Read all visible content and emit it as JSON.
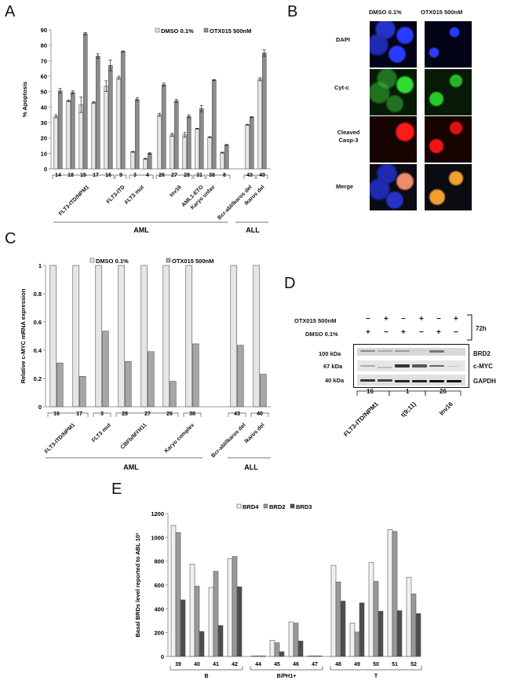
{
  "panels": {
    "A": {
      "letter": "A",
      "legend": [
        "DMSO 0.1%",
        "OTX015 500nM"
      ],
      "ylabel": "% Apoptosis",
      "yticks": [
        "0",
        "10",
        "20",
        "30",
        "40",
        "50",
        "60",
        "70",
        "80",
        "90"
      ],
      "groups_aml": "AML",
      "groups_all": "ALL"
    },
    "B": {
      "letter": "B",
      "col_headers": [
        "DMSO 0.1%",
        "OTX015 500nM"
      ],
      "row_labels": [
        "DAPI",
        "Cyt-c",
        "Cleaved Casp-3",
        "Merge"
      ]
    },
    "C": {
      "letter": "C",
      "legend": [
        "DMSO 0.1%",
        "OTX015 500nM"
      ],
      "ylabel": "Relative c-MYC mRNA expression",
      "yticks": [
        "0",
        "0.2",
        "0.4",
        "0.6",
        "0.8",
        "1"
      ],
      "groups_aml": "AML",
      "groups_all": "ALL"
    },
    "D": {
      "letter": "D",
      "row_treat_1": "OTX015 500nM",
      "row_treat_2": "DMSO 0.1%",
      "otx_signs": [
        "−",
        "+",
        "−",
        "+",
        "−",
        "+"
      ],
      "dmso_signs": [
        "+",
        "−",
        "+",
        "−",
        "+",
        "−"
      ],
      "time": "72h",
      "mw": [
        "100 kDa",
        "67 kDa",
        "40 kDa"
      ],
      "proteins": [
        "BRD2",
        "c-MYC",
        "GAPDH"
      ],
      "samples": [
        "16",
        "1",
        "26"
      ],
      "sample_labels": [
        "FLT3-ITD/NPM1",
        "t(9;11)",
        "Inv16"
      ]
    },
    "E": {
      "letter": "E",
      "legend": [
        "BRD4",
        "BRD2",
        "BRD3"
      ],
      "ylabel": "Basal BRDs level reported to ABL 10²",
      "yticks": [
        "0",
        "200",
        "400",
        "600",
        "800",
        "1000",
        "1200"
      ],
      "group_labels": [
        "B",
        "B/PH1+",
        "T"
      ]
    }
  },
  "chart_data": [
    {
      "id": "A",
      "type": "bar",
      "title": "",
      "xlabel": "",
      "ylabel": "% Apoptosis",
      "ylim": [
        0,
        90
      ],
      "legend_position": "top",
      "categories": [
        "14",
        "18",
        "15",
        "17",
        "16",
        "9",
        "3",
        "4",
        "26",
        "27",
        "28",
        "31",
        "38",
        "8",
        "43",
        "40"
      ],
      "category_groups": [
        {
          "label": "FLT3-ITD/NPM1",
          "members": [
            "14",
            "18",
            "15",
            "17",
            "16"
          ]
        },
        {
          "label": "FLT3-ITD",
          "members": [
            "9"
          ]
        },
        {
          "label": "FLT3 mut",
          "members": [
            "3",
            "4"
          ]
        },
        {
          "label": "Inv16",
          "members": [
            "26",
            "27",
            "28"
          ]
        },
        {
          "label": "AML1-ETO",
          "members": [
            "31"
          ]
        },
        {
          "label": "Karyo unfav",
          "members": [
            "38",
            "8"
          ]
        },
        {
          "label": "Bcr-abl/Ikaros del",
          "members": [
            "43"
          ]
        },
        {
          "label": "Ikaros del",
          "members": [
            "40"
          ]
        }
      ],
      "super_groups": [
        {
          "label": "AML",
          "members": [
            "14",
            "18",
            "15",
            "17",
            "16",
            "9",
            "3",
            "4",
            "26",
            "27",
            "28",
            "31",
            "38",
            "8"
          ]
        },
        {
          "label": "ALL",
          "members": [
            "43",
            "40"
          ]
        }
      ],
      "series": [
        {
          "name": "DMSO 0.1%",
          "color": "#e6e6e6",
          "values": [
            34,
            44,
            41.5,
            43,
            53.5,
            59,
            11,
            6.5,
            35,
            22,
            22,
            26,
            20.5,
            10.5,
            28.5,
            58
          ]
        },
        {
          "name": "OTX015 500nM",
          "color": "#8c8c8c",
          "values": [
            50.5,
            49.5,
            87.5,
            73,
            67,
            76,
            45,
            10,
            54.5,
            44,
            34,
            39,
            57.5,
            15.5,
            33.5,
            75
          ]
        }
      ]
    },
    {
      "id": "C",
      "type": "bar",
      "title": "",
      "xlabel": "",
      "ylabel": "Relative c-MYC mRNA expression",
      "ylim": [
        0,
        1
      ],
      "legend_position": "top",
      "categories": [
        "16",
        "17",
        "3",
        "28",
        "27",
        "26",
        "38",
        "43",
        "40"
      ],
      "category_groups": [
        {
          "label": "FLT3-ITD/NPM1",
          "members": [
            "16",
            "17"
          ]
        },
        {
          "label": "FLT3 mut",
          "members": [
            "3"
          ]
        },
        {
          "label": "CBFb/MYH11",
          "members": [
            "28",
            "27",
            "26"
          ]
        },
        {
          "label": "Karyo complex",
          "members": [
            "38"
          ]
        },
        {
          "label": "Bcr-abl/Ikaros del",
          "members": [
            "43"
          ]
        },
        {
          "label": "Ikaros del",
          "members": [
            "40"
          ]
        }
      ],
      "super_groups": [
        {
          "label": "AML",
          "members": [
            "16",
            "17",
            "3",
            "28",
            "27",
            "26",
            "38"
          ]
        },
        {
          "label": "ALL",
          "members": [
            "43",
            "40"
          ]
        }
      ],
      "series": [
        {
          "name": "DMSO 0.1%",
          "color": "#e6e6e6",
          "values": [
            1,
            1,
            1,
            1,
            1,
            1,
            1,
            1,
            1
          ]
        },
        {
          "name": "OTX015 500nM",
          "color": "#a6a6a6",
          "values": [
            0.31,
            0.215,
            0.535,
            0.32,
            0.39,
            0.18,
            0.445,
            0.435,
            0.23
          ]
        }
      ]
    },
    {
      "id": "E",
      "type": "bar",
      "title": "",
      "xlabel": "",
      "ylabel": "Basal BRDs level reported to ABL 10²",
      "ylim": [
        0,
        1200
      ],
      "legend_position": "top",
      "categories": [
        "39",
        "40",
        "41",
        "42",
        "44",
        "45",
        "46",
        "47",
        "48",
        "49",
        "50",
        "51",
        "52"
      ],
      "category_groups": [
        {
          "label": "B",
          "members": [
            "39",
            "40",
            "41",
            "42"
          ]
        },
        {
          "label": "B/PH1+",
          "members": [
            "44",
            "45",
            "46",
            "47"
          ]
        },
        {
          "label": "T",
          "members": [
            "48",
            "49",
            "50",
            "51",
            "52"
          ]
        }
      ],
      "series": [
        {
          "name": "BRD4",
          "color": "#f0f0f0",
          "values": [
            1100,
            775,
            580,
            820,
            5,
            135,
            290,
            5,
            765,
            280,
            790,
            1065,
            665
          ]
        },
        {
          "name": "BRD2",
          "color": "#999999",
          "values": [
            1040,
            590,
            715,
            840,
            5,
            115,
            280,
            5,
            625,
            205,
            630,
            1050,
            525
          ]
        },
        {
          "name": "BRD3",
          "color": "#4d4d4d",
          "values": [
            475,
            210,
            260,
            585,
            5,
            40,
            130,
            5,
            465,
            450,
            380,
            385,
            360
          ]
        }
      ]
    }
  ]
}
